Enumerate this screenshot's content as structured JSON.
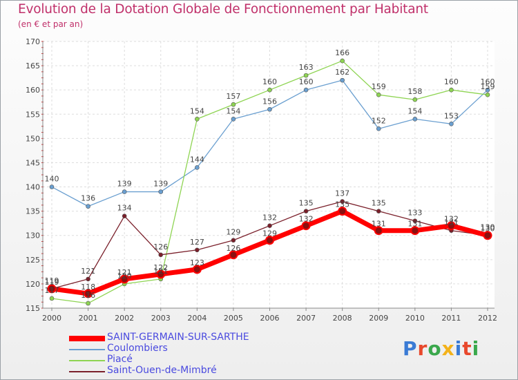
{
  "title": "Evolution de la Dotation Globale de Fonctionnement par Habitant",
  "subtitle": "(en € et par an)",
  "logo": {
    "text": "Proxiti",
    "letter_colors": [
      "#3a7bd5",
      "#e8482c",
      "#3aa84c",
      "#f3b21a",
      "#3a7bd5",
      "#e8482c",
      "#3aa84c"
    ]
  },
  "chart_data": {
    "type": "line",
    "x": [
      "2000",
      "2001",
      "2002",
      "2003",
      "2004",
      "2005",
      "2006",
      "2007",
      "2008",
      "2009",
      "2010",
      "2011",
      "2012"
    ],
    "ylim": [
      115,
      170
    ],
    "yticks": [
      115,
      120,
      125,
      130,
      135,
      140,
      145,
      150,
      155,
      160,
      165,
      170
    ],
    "grid": true,
    "legend_position": "bottom",
    "series": [
      {
        "name": "SAINT-GERMAIN-SUR-SARTHE",
        "color": "#ff0000",
        "values": [
          119,
          118,
          121,
          122,
          123,
          126,
          129,
          132,
          135,
          131,
          131,
          132,
          130
        ],
        "labels": [
          "119",
          "118",
          "121",
          "122",
          "123",
          "126",
          "129",
          "132",
          "135",
          "131",
          "131",
          "132",
          "130"
        ]
      },
      {
        "name": "Coulombiers",
        "color": "#6a9fd0",
        "values": [
          140,
          136,
          139,
          139,
          144,
          154,
          156,
          160,
          162,
          152,
          154,
          153,
          160
        ],
        "labels": [
          "140",
          "136",
          "139",
          "139",
          "144",
          "154",
          "156",
          "160",
          "162",
          "152",
          "154",
          "153",
          "160"
        ]
      },
      {
        "name": "Piacé",
        "color": "#8ed452",
        "values": [
          117,
          116,
          120,
          121,
          154,
          157,
          160,
          163,
          166,
          159,
          158,
          160,
          159
        ],
        "labels": [
          "117",
          "116",
          "120",
          "121",
          "154",
          "157",
          "160",
          "163",
          "166",
          "159",
          "158",
          "160",
          "159"
        ]
      },
      {
        "name": "Saint-Ouen-de-Mimbré",
        "color": "#7a1f2a",
        "values": [
          119,
          121,
          134,
          126,
          127,
          129,
          132,
          135,
          137,
          135,
          133,
          131,
          130
        ],
        "labels": [
          "119",
          "121",
          "134",
          "126",
          "127",
          "129",
          "132",
          "135",
          "137",
          "135",
          "133",
          "131",
          "130"
        ]
      }
    ]
  }
}
